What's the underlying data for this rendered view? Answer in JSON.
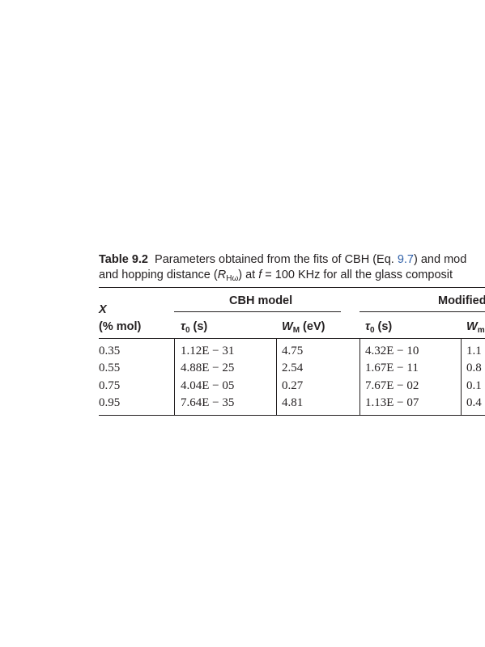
{
  "table": {
    "label": "Table 9.2",
    "caption_line1": [
      "Parameters obtained from the fits of CBH (Eq. ",
      "9.7",
      ") and mod"
    ],
    "caption_line2": [
      "and hopping distance (",
      "R",
      "Hω",
      ") at ",
      "f",
      " = 100 KHz for all the glass composit"
    ],
    "row_header": [
      "X",
      "(% mol)"
    ],
    "groups": [
      "CBH model",
      "Modified"
    ],
    "columns": [
      [
        "τ",
        "0",
        " (s)"
      ],
      [
        "W",
        "M",
        " (eV)"
      ],
      [
        "τ",
        "0",
        " (s)"
      ],
      [
        "W",
        "m"
      ]
    ],
    "rows": [
      [
        "0.35",
        "1.12E − 31",
        "4.75",
        "4.32E − 10",
        "1.1"
      ],
      [
        "0.55",
        "4.88E − 25",
        "2.54",
        "1.67E − 11",
        "0.8"
      ],
      [
        "0.75",
        "4.04E − 05",
        "0.27",
        "7.67E − 02",
        "0.1"
      ],
      [
        "0.95",
        "7.64E − 35",
        "4.81",
        "1.13E − 07",
        "0.4"
      ]
    ]
  }
}
